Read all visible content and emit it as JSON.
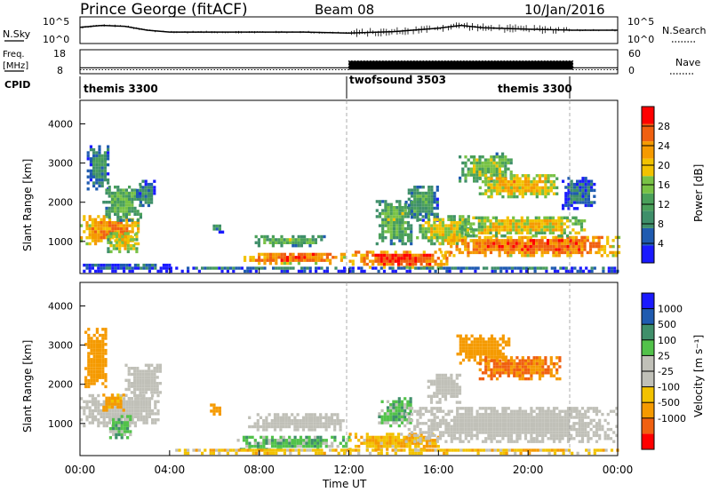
{
  "header": {
    "station": "Prince George (fitACF)",
    "beam": "Beam 08",
    "date": "10/Jan/2016"
  },
  "labels": {
    "nsky": "N.Sky",
    "freq_line1": "Freq.",
    "freq_line2": "[MHz]",
    "cpid": "CPID",
    "nsearch": "N.Search",
    "nave": "Nave"
  },
  "cpid_segments": [
    {
      "label": "themis 3300",
      "start_h": 0.0
    },
    {
      "label": "twofsound 3503",
      "start_h": 12.0
    },
    {
      "label": "themis 3300",
      "start_h": 22.0
    }
  ],
  "colors": {
    "power_scale": [
      "#1a1aff",
      "#1f5bb0",
      "#3f8f6a",
      "#4aa05a",
      "#78c245",
      "#f2c200",
      "#f59a00",
      "#f06010",
      "#ff0000"
    ],
    "velocity_scale": [
      "#ff0000",
      "#f06010",
      "#f59a00",
      "#f2c200",
      "#c0c0b8",
      "#c0c0b8",
      "#52c24a",
      "#3f8f6a",
      "#1f5bb0",
      "#1a1aff"
    ],
    "ground_scatter": "#c0c0b8"
  },
  "chart_data": [
    {
      "id": "nsky_nsearch",
      "type": "line",
      "left_axis": {
        "title": "N.Sky",
        "ticks": [
          "10^5",
          "10^0"
        ]
      },
      "right_axis": {
        "title": "N.Search",
        "ticks": [
          "10^5",
          "10^0"
        ]
      },
      "series": [
        {
          "name": "N.Sky",
          "x": [
            0,
            1,
            2,
            3,
            4,
            6,
            8,
            10,
            12,
            14,
            16,
            17,
            18,
            20,
            22,
            24
          ],
          "y": [
            3.2,
            3.6,
            3.4,
            2.6,
            2.2,
            2.2,
            2.2,
            2.2,
            2.0,
            2.3,
            3.0,
            3.6,
            3.1,
            2.8,
            2.6,
            2.6
          ]
        }
      ]
    },
    {
      "id": "freq_nave",
      "type": "line",
      "left_axis": {
        "title": "Freq. [MHz]",
        "ticks": [
          "18",
          "8"
        ],
        "range": [
          8,
          18
        ]
      },
      "right_axis": {
        "title": "Nave",
        "ticks": [
          "60",
          "0"
        ],
        "range": [
          0,
          60
        ]
      },
      "series": [
        {
          "name": "Freq.",
          "x": [
            0,
            12,
            12,
            22,
            22,
            24
          ],
          "y": [
            10.5,
            10.5,
            10.8,
            10.8,
            10.5,
            10.5
          ]
        },
        {
          "name": "Nave",
          "x": [
            0,
            12,
            12,
            22,
            22,
            24
          ],
          "y": [
            10,
            10,
            32,
            32,
            10,
            10
          ]
        }
      ]
    },
    {
      "id": "power",
      "type": "heatmap",
      "ylabel": "Slant Range [km]",
      "yticks": [
        "1000",
        "2000",
        "3000",
        "4000"
      ],
      "ylim": [
        180,
        4600
      ],
      "xlim": [
        0,
        24
      ],
      "colorbar": {
        "title": "Power [dB]",
        "ticks": [
          "4",
          "8",
          "12",
          "16",
          "20",
          "24",
          "28"
        ],
        "range": [
          0,
          32
        ]
      },
      "patches": [
        {
          "t0": 0.0,
          "t1": 2.6,
          "r0": 900,
          "r1": 1600,
          "v": 24
        },
        {
          "t0": 0.3,
          "t1": 1.3,
          "r0": 2300,
          "r1": 3400,
          "v": 10
        },
        {
          "t0": 1.0,
          "t1": 2.7,
          "r0": 1500,
          "r1": 2400,
          "v": 14
        },
        {
          "t0": 1.2,
          "t1": 2.5,
          "r0": 700,
          "r1": 1200,
          "v": 20
        },
        {
          "t0": 2.5,
          "t1": 3.3,
          "r0": 1800,
          "r1": 2500,
          "v": 9
        },
        {
          "t0": 0.0,
          "t1": 4.0,
          "r0": 200,
          "r1": 400,
          "v": 6
        },
        {
          "t0": 5.8,
          "t1": 6.4,
          "r0": 1200,
          "r1": 1400,
          "v": 10
        },
        {
          "t0": 7.8,
          "t1": 11.0,
          "r0": 850,
          "r1": 1100,
          "v": 14
        },
        {
          "t0": 7.3,
          "t1": 11.8,
          "r0": 400,
          "r1": 700,
          "v": 26
        },
        {
          "t0": 4.0,
          "t1": 12.0,
          "r0": 200,
          "r1": 300,
          "v": 8
        },
        {
          "t0": 12.0,
          "t1": 16.5,
          "r0": 300,
          "r1": 700,
          "v": 27
        },
        {
          "t0": 13.2,
          "t1": 14.8,
          "r0": 900,
          "r1": 2000,
          "v": 14
        },
        {
          "t0": 14.5,
          "t1": 16.0,
          "r0": 1500,
          "r1": 2400,
          "v": 11
        },
        {
          "t0": 15.0,
          "t1": 17.5,
          "r0": 900,
          "r1": 1600,
          "v": 18
        },
        {
          "t0": 16.0,
          "t1": 24.0,
          "r0": 600,
          "r1": 1100,
          "v": 26
        },
        {
          "t0": 17.0,
          "t1": 22.5,
          "r0": 1100,
          "r1": 1600,
          "v": 20
        },
        {
          "t0": 16.9,
          "t1": 19.3,
          "r0": 2500,
          "r1": 3200,
          "v": 16
        },
        {
          "t0": 17.8,
          "t1": 21.3,
          "r0": 2100,
          "r1": 2700,
          "v": 21
        },
        {
          "t0": 21.5,
          "t1": 23.0,
          "r0": 1800,
          "r1": 2600,
          "v": 7
        },
        {
          "t0": 12.0,
          "t1": 24.0,
          "r0": 200,
          "r1": 300,
          "v": 8
        }
      ]
    },
    {
      "id": "velocity",
      "type": "heatmap",
      "ylabel": "Slant Range [km]",
      "yticks": [
        "1000",
        "2000",
        "3000",
        "4000"
      ],
      "ylim": [
        180,
        4600
      ],
      "xlim": [
        0,
        24
      ],
      "xlabel": "Time UT",
      "xticks": [
        "00:00",
        "04:00",
        "08:00",
        "12:00",
        "16:00",
        "20:00",
        "00:00"
      ],
      "colorbar": {
        "title": "Velocity [m s⁻¹]",
        "ticks": [
          "1000",
          "500",
          "100",
          "25",
          "-25",
          "-100",
          "-500",
          "-1000"
        ],
        "range": [
          -1200,
          1200
        ]
      },
      "patches": [
        {
          "t0": 0.0,
          "t1": 3.5,
          "r0": 900,
          "r1": 1700,
          "v": 0,
          "gs": true
        },
        {
          "t0": 2.0,
          "t1": 3.6,
          "r0": 1600,
          "r1": 2500,
          "v": 0,
          "gs": true
        },
        {
          "t0": 0.2,
          "t1": 1.2,
          "r0": 1900,
          "r1": 3400,
          "v": -300
        },
        {
          "t0": 1.3,
          "t1": 2.3,
          "r0": 600,
          "r1": 1200,
          "v": 60
        },
        {
          "t0": 1.0,
          "t1": 2.0,
          "r0": 1300,
          "r1": 1700,
          "v": -150
        },
        {
          "t0": 5.8,
          "t1": 6.3,
          "r0": 1200,
          "r1": 1450,
          "v": -300
        },
        {
          "t0": 7.5,
          "t1": 11.8,
          "r0": 800,
          "r1": 1200,
          "v": 0,
          "gs": true
        },
        {
          "t0": 7.0,
          "t1": 12.0,
          "r0": 300,
          "r1": 650,
          "v": 60
        },
        {
          "t0": 12.0,
          "t1": 16.0,
          "r0": 300,
          "r1": 700,
          "v": -90
        },
        {
          "t0": 13.3,
          "t1": 14.8,
          "r0": 900,
          "r1": 1600,
          "v": 60
        },
        {
          "t0": 14.5,
          "t1": 24.0,
          "r0": 500,
          "r1": 1400,
          "v": 0,
          "gs": true
        },
        {
          "t0": 15.5,
          "t1": 17.0,
          "r0": 1500,
          "r1": 2200,
          "v": 0,
          "gs": true
        },
        {
          "t0": 16.8,
          "t1": 19.2,
          "r0": 2500,
          "r1": 3200,
          "v": -200
        },
        {
          "t0": 17.8,
          "t1": 21.4,
          "r0": 2100,
          "r1": 2700,
          "v": -500
        },
        {
          "t0": 4.0,
          "t1": 12.0,
          "r0": 200,
          "r1": 320,
          "v": -60
        },
        {
          "t0": 12.0,
          "t1": 24.0,
          "r0": 200,
          "r1": 320,
          "v": -60
        }
      ]
    }
  ]
}
